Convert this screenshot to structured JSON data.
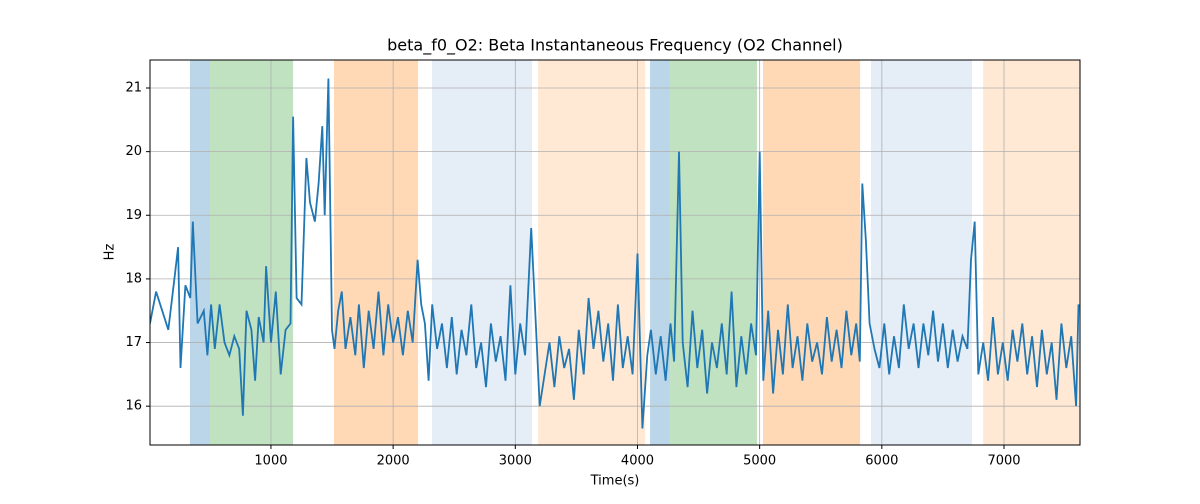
{
  "chart_data": {
    "type": "line",
    "title": "beta_f0_O2: Beta Instantaneous Frequency (O2 Channel)",
    "xlabel": "Time(s)",
    "ylabel": "Hz",
    "xlim": [
      10,
      7622
    ],
    "ylim": [
      15.39,
      21.44
    ],
    "xticks": [
      1000,
      2000,
      3000,
      4000,
      5000,
      6000,
      7000
    ],
    "yticks": [
      16,
      17,
      18,
      19,
      20,
      21
    ],
    "grid": true,
    "spans": [
      {
        "x": [
          337,
          501
        ],
        "color": "#bbd6e8"
      },
      {
        "x": [
          501,
          1181
        ],
        "color": "#c0e2c0"
      },
      {
        "x": [
          1516,
          2204
        ],
        "color": "#ffd8b6"
      },
      {
        "x": [
          2318,
          3137
        ],
        "color": "#e5edf7"
      },
      {
        "x": [
          3186,
          4062
        ],
        "color": "#ffe9d5"
      },
      {
        "x": [
          4103,
          4267
        ],
        "color": "#bbd6e8"
      },
      {
        "x": [
          4267,
          4978
        ],
        "color": "#c0e2c0"
      },
      {
        "x": [
          5027,
          5822
        ],
        "color": "#ffd8b6"
      },
      {
        "x": [
          5911,
          6738
        ],
        "color": "#e5edf7"
      },
      {
        "x": [
          6829,
          7622
        ],
        "color": "#ffe9d5"
      }
    ],
    "series": [
      {
        "color": "#1f77b4",
        "x": [
          10,
          60,
          110,
          160,
          210,
          240,
          260,
          300,
          340,
          360,
          400,
          450,
          480,
          510,
          540,
          580,
          620,
          660,
          700,
          740,
          770,
          800,
          840,
          870,
          900,
          940,
          960,
          1000,
          1040,
          1080,
          1120,
          1160,
          1181,
          1210,
          1250,
          1290,
          1320,
          1360,
          1390,
          1420,
          1440,
          1470,
          1500,
          1520,
          1550,
          1580,
          1610,
          1650,
          1690,
          1720,
          1760,
          1800,
          1840,
          1880,
          1920,
          1960,
          2000,
          2040,
          2080,
          2120,
          2160,
          2200,
          2230,
          2260,
          2290,
          2320,
          2360,
          2400,
          2440,
          2480,
          2520,
          2560,
          2600,
          2640,
          2680,
          2720,
          2760,
          2800,
          2840,
          2880,
          2920,
          2960,
          3000,
          3040,
          3080,
          3130,
          3160,
          3200,
          3240,
          3280,
          3320,
          3360,
          3400,
          3440,
          3480,
          3520,
          3560,
          3600,
          3640,
          3680,
          3720,
          3760,
          3800,
          3840,
          3880,
          3920,
          3960,
          4000,
          4040,
          4080,
          4110,
          4150,
          4190,
          4230,
          4270,
          4300,
          4340,
          4370,
          4410,
          4450,
          4490,
          4530,
          4570,
          4610,
          4650,
          4690,
          4730,
          4770,
          4810,
          4850,
          4890,
          4930,
          4970,
          5000,
          5030,
          5070,
          5110,
          5150,
          5190,
          5230,
          5270,
          5310,
          5350,
          5390,
          5430,
          5470,
          5510,
          5550,
          5590,
          5630,
          5670,
          5710,
          5750,
          5790,
          5820,
          5840,
          5870,
          5900,
          5940,
          5980,
          6020,
          6060,
          6100,
          6140,
          6180,
          6220,
          6260,
          6300,
          6340,
          6380,
          6420,
          6460,
          6500,
          6540,
          6580,
          6620,
          6660,
          6700,
          6730,
          6760,
          6790,
          6830,
          6870,
          6910,
          6950,
          6990,
          7030,
          7070,
          7110,
          7150,
          7190,
          7230,
          7270,
          7310,
          7350,
          7390,
          7430,
          7470,
          7510,
          7550,
          7590,
          7610
        ],
        "values": [
          17.3,
          17.8,
          17.5,
          17.2,
          18.0,
          18.5,
          16.6,
          17.9,
          17.7,
          18.9,
          17.3,
          17.5,
          16.8,
          17.6,
          16.9,
          17.6,
          17.0,
          16.8,
          17.1,
          16.9,
          15.85,
          17.5,
          17.2,
          16.4,
          17.4,
          17.0,
          18.2,
          17.0,
          17.8,
          16.5,
          17.2,
          17.3,
          20.55,
          17.7,
          17.6,
          19.9,
          19.2,
          18.9,
          19.5,
          20.4,
          19.0,
          21.15,
          17.2,
          16.9,
          17.5,
          17.8,
          16.9,
          17.4,
          16.8,
          17.6,
          16.6,
          17.5,
          16.9,
          17.8,
          16.8,
          17.6,
          17.0,
          17.4,
          16.8,
          17.5,
          17.0,
          18.3,
          17.6,
          17.3,
          16.4,
          17.6,
          16.9,
          17.3,
          16.6,
          17.4,
          16.5,
          17.2,
          16.8,
          17.6,
          16.6,
          17.0,
          16.3,
          17.3,
          16.7,
          17.1,
          16.4,
          17.9,
          16.5,
          17.3,
          16.8,
          18.8,
          17.6,
          16.0,
          16.5,
          17.0,
          16.3,
          17.1,
          16.6,
          16.9,
          16.1,
          17.2,
          16.5,
          17.7,
          16.9,
          17.5,
          16.7,
          17.3,
          16.4,
          17.6,
          16.6,
          17.1,
          16.5,
          18.4,
          15.65,
          16.8,
          17.2,
          16.5,
          17.1,
          16.4,
          17.3,
          16.7,
          20.0,
          17.0,
          16.3,
          17.5,
          16.6,
          17.2,
          16.2,
          17.0,
          16.6,
          17.3,
          16.5,
          17.8,
          16.3,
          17.1,
          16.5,
          17.3,
          16.8,
          20.0,
          16.4,
          17.5,
          16.2,
          17.2,
          16.5,
          17.6,
          16.6,
          17.1,
          16.4,
          17.3,
          16.7,
          17.0,
          16.5,
          17.4,
          16.7,
          17.2,
          16.6,
          17.5,
          16.8,
          17.3,
          16.7,
          19.5,
          18.6,
          17.3,
          16.9,
          16.6,
          17.3,
          16.5,
          17.1,
          16.6,
          17.6,
          16.9,
          17.3,
          16.6,
          17.3,
          16.8,
          17.5,
          16.7,
          17.3,
          16.6,
          17.2,
          16.7,
          17.1,
          16.9,
          18.3,
          18.9,
          16.5,
          17.0,
          16.4,
          17.4,
          16.5,
          17.0,
          16.4,
          17.2,
          16.7,
          17.3,
          16.5,
          17.1,
          16.3,
          17.2,
          16.5,
          17.0,
          16.1,
          17.3,
          16.6,
          17.1,
          16.0,
          17.6
        ]
      }
    ]
  }
}
